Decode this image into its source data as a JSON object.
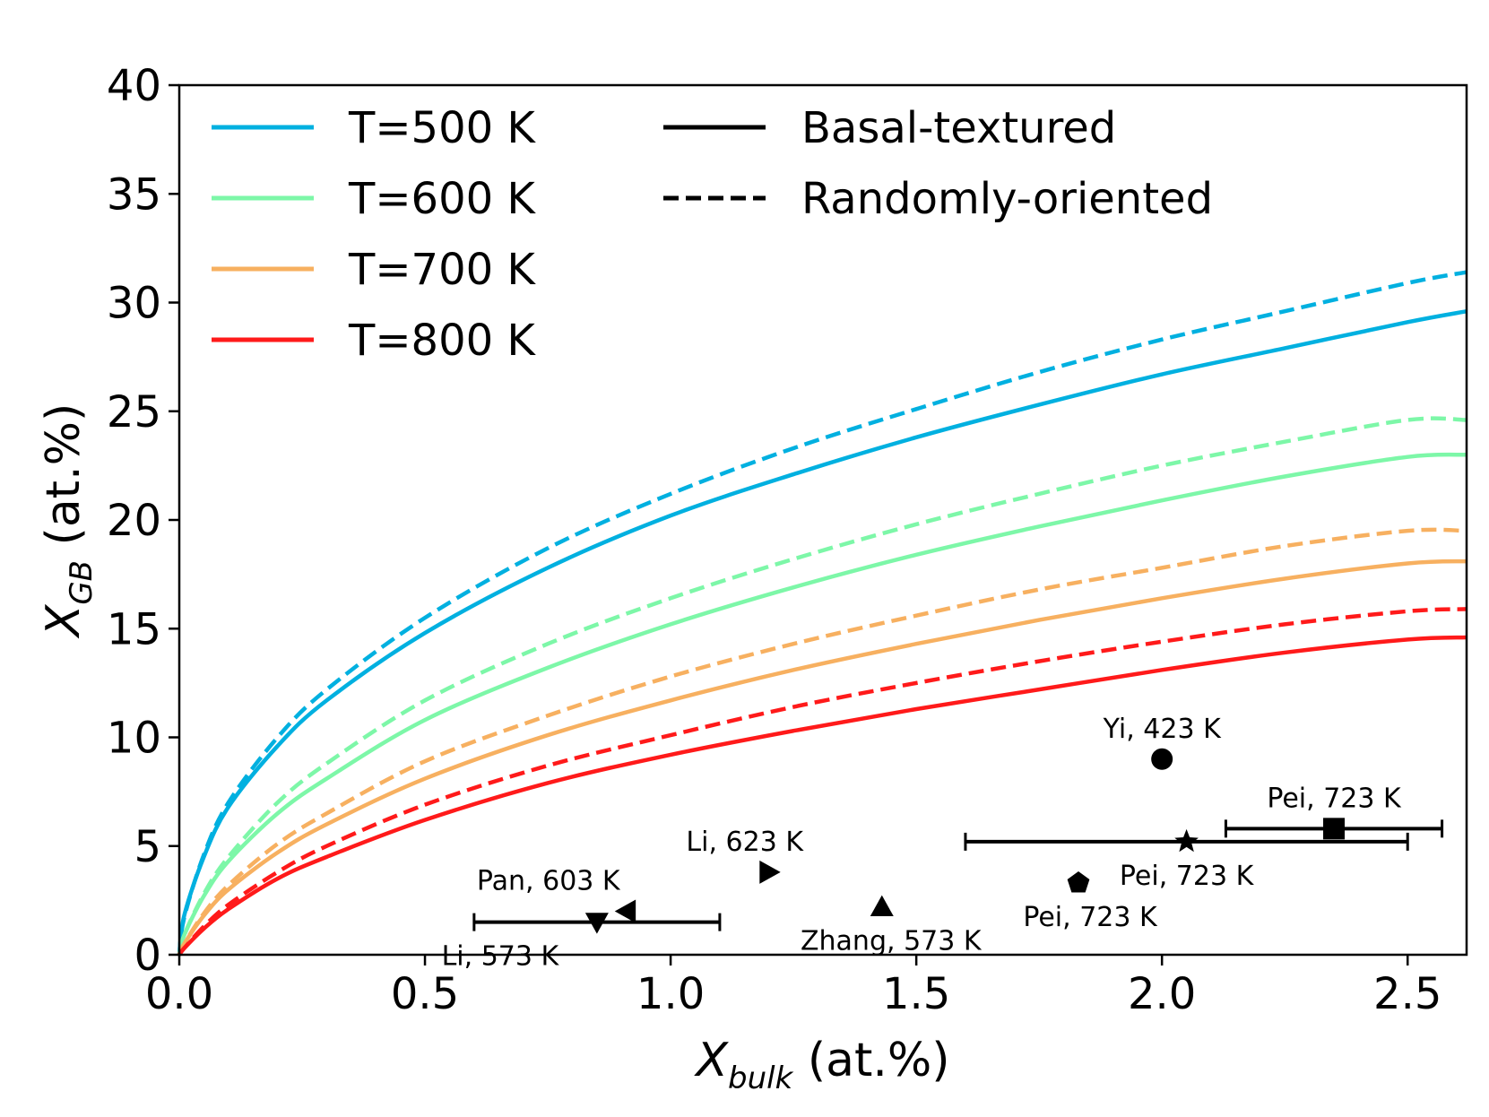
{
  "chart_data": {
    "type": "line",
    "xlabel": {
      "var": "X",
      "sub": "bulk",
      "unit": " (at.%)"
    },
    "ylabel": {
      "var": "X",
      "sub": "GB",
      "unit": " (at.%)"
    },
    "xlim": [
      0.0,
      2.62
    ],
    "ylim": [
      0,
      40
    ],
    "x_ticks": [
      0.0,
      0.5,
      1.0,
      1.5,
      2.0,
      2.5
    ],
    "x_tick_labels": [
      "0.0",
      "0.5",
      "1.0",
      "1.5",
      "2.0",
      "2.5"
    ],
    "y_ticks": [
      0,
      5,
      10,
      15,
      20,
      25,
      30,
      35,
      40
    ],
    "y_tick_labels": [
      "0",
      "5",
      "10",
      "15",
      "20",
      "25",
      "30",
      "35",
      "40"
    ],
    "grid": false,
    "legend_placement": "top-left",
    "x": [
      0.0,
      0.01,
      0.05,
      0.1,
      0.2,
      0.3,
      0.5,
      0.75,
      1.0,
      1.25,
      1.5,
      1.75,
      2.0,
      2.25,
      2.5,
      2.62
    ],
    "series": [
      {
        "name": "T=500 K",
        "style": "Basal-textured",
        "color": "#00b0e0",
        "dash": "solid",
        "values": [
          0.0,
          1.8,
          4.5,
          6.8,
          9.6,
          11.7,
          14.8,
          17.8,
          20.2,
          22.1,
          23.8,
          25.3,
          26.7,
          27.9,
          29.1,
          29.6
        ]
      },
      {
        "name": "T=500 K",
        "style": "Randomly-oriented",
        "color": "#00b0e0",
        "dash": "dashed",
        "values": [
          0.0,
          1.7,
          4.6,
          7.0,
          10.0,
          12.2,
          15.5,
          18.7,
          21.2,
          23.3,
          25.1,
          26.8,
          28.3,
          29.6,
          30.9,
          31.4
        ]
      },
      {
        "name": "T=600 K",
        "style": "Basal-textured",
        "color": "#7df7a8",
        "dash": "solid",
        "values": [
          0.0,
          0.9,
          2.7,
          4.3,
          6.5,
          8.1,
          10.8,
          13.2,
          15.2,
          16.9,
          18.4,
          19.7,
          20.9,
          22.0,
          22.9,
          23.0
        ]
      },
      {
        "name": "T=600 K",
        "style": "Randomly-oriented",
        "color": "#7df7a8",
        "dash": "dashed",
        "values": [
          0.0,
          0.9,
          2.8,
          4.5,
          7.0,
          8.8,
          11.7,
          14.3,
          16.4,
          18.2,
          19.8,
          21.2,
          22.5,
          23.6,
          24.6,
          24.6
        ]
      },
      {
        "name": "T=700 K",
        "style": "Basal-textured",
        "color": "#f7b060",
        "dash": "solid",
        "values": [
          0.0,
          0.5,
          1.8,
          3.0,
          4.7,
          6.0,
          8.1,
          10.1,
          11.7,
          13.1,
          14.3,
          15.4,
          16.4,
          17.3,
          18.0,
          18.1
        ]
      },
      {
        "name": "T=700 K",
        "style": "Randomly-oriented",
        "color": "#f7b060",
        "dash": "dashed",
        "values": [
          0.0,
          0.5,
          1.9,
          3.2,
          5.1,
          6.5,
          8.9,
          11.0,
          12.8,
          14.3,
          15.6,
          16.8,
          17.8,
          18.8,
          19.5,
          19.5
        ]
      },
      {
        "name": "T=800 K",
        "style": "Basal-textured",
        "color": "#ff1a1a",
        "dash": "solid",
        "values": [
          0.0,
          0.3,
          1.2,
          2.1,
          3.5,
          4.5,
          6.2,
          7.9,
          9.2,
          10.3,
          11.3,
          12.2,
          13.1,
          13.9,
          14.5,
          14.6
        ]
      },
      {
        "name": "T=800 K",
        "style": "Randomly-oriented",
        "color": "#ff1a1a",
        "dash": "dashed",
        "values": [
          0.0,
          0.3,
          1.3,
          2.3,
          3.8,
          5.0,
          6.9,
          8.7,
          10.1,
          11.4,
          12.5,
          13.5,
          14.4,
          15.2,
          15.8,
          15.9
        ]
      }
    ],
    "legend_temperature": [
      {
        "label": "T=500 K",
        "color": "#00b0e0"
      },
      {
        "label": "T=600 K",
        "color": "#7df7a8"
      },
      {
        "label": "T=700 K",
        "color": "#f7b060"
      },
      {
        "label": "T=800 K",
        "color": "#ff1a1a"
      }
    ],
    "legend_style": [
      {
        "label": "Basal-textured",
        "dash": "solid"
      },
      {
        "label": "Randomly-oriented",
        "dash": "dashed"
      }
    ],
    "experiments": [
      {
        "label": "Yi, 423 K",
        "x": 2.0,
        "y": 9.0,
        "marker": "circle",
        "label_pos": "above"
      },
      {
        "label": "Pei, 723 K",
        "x": 2.35,
        "y": 5.8,
        "marker": "square",
        "xerr": [
          2.13,
          2.57
        ],
        "label_pos": "above"
      },
      {
        "label": "Pei, 723 K",
        "x": 2.05,
        "y": 5.2,
        "marker": "star",
        "xerr": [
          1.6,
          2.5
        ],
        "label_pos": "below"
      },
      {
        "label": "Pei, 723 K",
        "x": 1.83,
        "y": 3.3,
        "marker": "pentagon",
        "label_pos": "below"
      },
      {
        "label": "Li, 623 K",
        "x": 1.2,
        "y": 3.8,
        "marker": "triangle-right",
        "label_pos": "above"
      },
      {
        "label": "Zhang, 573 K",
        "x": 1.43,
        "y": 2.2,
        "marker": "triangle-up",
        "label_pos": "below"
      },
      {
        "label": "Pan, 603 K",
        "x": 0.91,
        "y": 2.0,
        "marker": "triangle-left",
        "label_pos": "above"
      },
      {
        "label": "Li, 573 K",
        "x": 0.85,
        "y": 1.5,
        "marker": "triangle-down",
        "xerr": [
          0.6,
          1.1
        ],
        "label_pos": "below"
      }
    ]
  }
}
